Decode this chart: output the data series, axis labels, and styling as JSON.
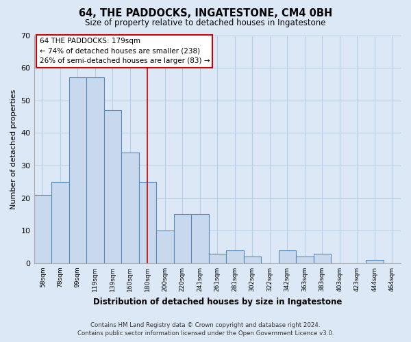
{
  "title": "64, THE PADDOCKS, INGATESTONE, CM4 0BH",
  "subtitle": "Size of property relative to detached houses in Ingatestone",
  "xlabel": "Distribution of detached houses by size in Ingatestone",
  "ylabel": "Number of detached properties",
  "bar_labels": [
    "58sqm",
    "78sqm",
    "99sqm",
    "119sqm",
    "139sqm",
    "160sqm",
    "180sqm",
    "200sqm",
    "220sqm",
    "241sqm",
    "261sqm",
    "281sqm",
    "302sqm",
    "322sqm",
    "342sqm",
    "363sqm",
    "383sqm",
    "403sqm",
    "423sqm",
    "444sqm",
    "464sqm"
  ],
  "bar_values": [
    21,
    25,
    57,
    57,
    47,
    34,
    25,
    10,
    15,
    15,
    3,
    4,
    2,
    0,
    4,
    2,
    3,
    0,
    0,
    1,
    0
  ],
  "bar_color": "#c8d9ed",
  "bar_edge_color": "#5588bb",
  "highlight_index": 6,
  "highlight_line_color": "#cc0000",
  "ylim": [
    0,
    70
  ],
  "yticks": [
    0,
    10,
    20,
    30,
    40,
    50,
    60,
    70
  ],
  "annotation_title": "64 THE PADDOCKS: 179sqm",
  "annotation_line1": "← 74% of detached houses are smaller (238)",
  "annotation_line2": "26% of semi-detached houses are larger (83) →",
  "annotation_box_color": "#ffffff",
  "annotation_box_edge_color": "#cc0000",
  "footer_line1": "Contains HM Land Registry data © Crown copyright and database right 2024.",
  "footer_line2": "Contains public sector information licensed under the Open Government Licence v3.0.",
  "bg_color": "#dce8f5",
  "plot_bg_color": "#dce8f5",
  "grid_color": "#b8cfe8"
}
